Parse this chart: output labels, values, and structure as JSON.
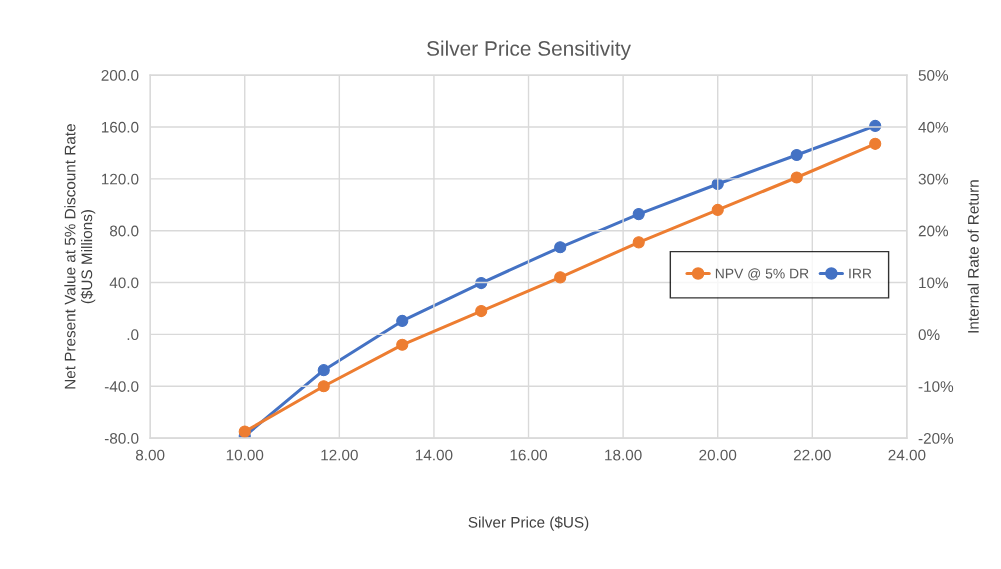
{
  "chart_data": {
    "type": "line",
    "title": "Silver Price Sensitivity",
    "xlabel": "Silver Price ($US)",
    "ylabel": "Net Present Value at 5% Discount Rate\n($US Millions)",
    "y2label": "Internal Rate of Return",
    "x": [
      10.0,
      11.67,
      13.33,
      15.0,
      16.67,
      18.33,
      20.0,
      21.67,
      23.33
    ],
    "series": [
      {
        "name": "NPV @ 5% DR",
        "color": "#ed7d31",
        "values": [
          -75,
          -40,
          -8,
          18,
          44,
          71,
          96,
          121,
          147
        ]
      },
      {
        "name": "IRR",
        "color": "#4472c4",
        "axis": "y2",
        "values": [
          -19.6,
          -6.9,
          2.6,
          9.9,
          16.8,
          23.2,
          29.0,
          34.6,
          40.2
        ]
      }
    ],
    "xlim": [
      8,
      24
    ],
    "xticks": [
      {
        "value": 8,
        "label": "8.00"
      },
      {
        "value": 10,
        "label": "10.00"
      },
      {
        "value": 12,
        "label": "12.00"
      },
      {
        "value": 14,
        "label": "14.00"
      },
      {
        "value": 16,
        "label": "16.00"
      },
      {
        "value": 18,
        "label": "18.00"
      },
      {
        "value": 20,
        "label": "20.00"
      },
      {
        "value": 22,
        "label": "22.00"
      },
      {
        "value": 24,
        "label": "24.00"
      }
    ],
    "ylim": [
      -80,
      200
    ],
    "yticks": [
      {
        "value": -80,
        "label": "-80.0"
      },
      {
        "value": -40,
        "label": "-40.0"
      },
      {
        "value": 0,
        "label": ".0"
      },
      {
        "value": 40,
        "label": "40.0"
      },
      {
        "value": 80,
        "label": "80.0"
      },
      {
        "value": 120,
        "label": "120.0"
      },
      {
        "value": 160,
        "label": "160.0"
      },
      {
        "value": 200,
        "label": "200.0"
      }
    ],
    "y2lim": [
      -20,
      50
    ],
    "y2ticks": [
      {
        "value": -20,
        "label": "-20%"
      },
      {
        "value": -10,
        "label": "-10%"
      },
      {
        "value": 0,
        "label": "0%"
      },
      {
        "value": 10,
        "label": "10%"
      },
      {
        "value": 20,
        "label": "20%"
      },
      {
        "value": 30,
        "label": "30%"
      },
      {
        "value": 40,
        "label": "40%"
      },
      {
        "value": 50,
        "label": "50%"
      }
    ],
    "grid": true,
    "legend": "right",
    "marker": "circle",
    "line_style": "solid"
  }
}
